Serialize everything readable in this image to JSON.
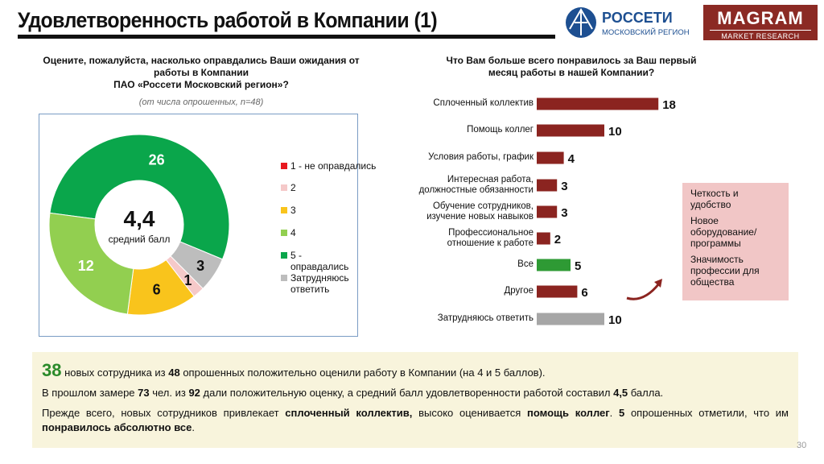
{
  "header": {
    "title": "Удовлетворенность работой в Компании (1)",
    "logo_rosseti": [
      "РОССЕТИ",
      "МОСКОВСКИЙ РЕГИОН"
    ],
    "logo_magram": [
      "MAGRAM",
      "MARKET RESEARCH"
    ]
  },
  "left": {
    "question_lines": [
      "Оцените, пожалуйста, насколько оправдались Ваши ожидания от",
      "работы в Компании",
      "ПАО «Россети Московский регион»?"
    ],
    "subtitle": "(от числа опрошенных, n=48)"
  },
  "right": {
    "question_lines": [
      "Что Вам больше всего понравилось за Ваш первый",
      "месяц работы в нашей Компании?"
    ]
  },
  "chart_data": [
    {
      "type": "pie",
      "center_value": "4,4",
      "center_label": "средний балл",
      "legend_position": "right",
      "slices": [
        {
          "label": "1 - не оправдались",
          "value": 0,
          "color": "#e8191f"
        },
        {
          "label": "2",
          "value": 1,
          "color": "#f5c9c9"
        },
        {
          "label": "3",
          "value": 6,
          "color": "#f9c41c"
        },
        {
          "label": "4",
          "value": 12,
          "color": "#92cf50"
        },
        {
          "label": "5 - оправдались",
          "value": 26,
          "color": "#0aa64b"
        },
        {
          "label": "Затрудняюсь ответить",
          "value": 3,
          "color": "#bdbdbd"
        }
      ]
    },
    {
      "type": "bar",
      "orientation": "horizontal",
      "categories": [
        "Сплоченный коллектив",
        "Помощь коллег",
        "Условия работы, график",
        "Интересная работа, должностные обязанности",
        "Обучение сотрудников, изучение новых навыков",
        "Профессиональное отношение к работе",
        "Все",
        "Другое",
        "Затрудняюсь ответить"
      ],
      "values": [
        18,
        10,
        4,
        3,
        3,
        2,
        5,
        6,
        10
      ],
      "colors": [
        "#8b2420",
        "#8b2420",
        "#8b2420",
        "#8b2420",
        "#8b2420",
        "#8b2420",
        "#2e9a34",
        "#8b2420",
        "#a6a6a6"
      ]
    }
  ],
  "note": [
    "Четкость и удобство",
    "Новое оборудование/ программы",
    "Значимость профессии для общества"
  ],
  "summary": {
    "p1": {
      "n1": "38",
      "t1": " новых сотрудника из ",
      "n2": "48",
      "t2": " опрошенных положительно оценили работу в Компании (на 4 и 5 баллов)."
    },
    "p2": {
      "t1": "В прошлом замере ",
      "n1": "73",
      "t2": " чел. из ",
      "n2": "92",
      "t3": " дали положительную оценку, а средний балл удовлетворенности работой составил ",
      "n3": "4,5",
      "t4": " балла."
    },
    "p3": {
      "t1": "Прежде всего, новых сотрудников привлекает ",
      "b1": "сплоченный коллектив,",
      "t2": " высоко оценивается ",
      "b2": "помощь коллег",
      "t3": ". ",
      "b3": "5",
      "t4": " опрошенных отметили, что им ",
      "b4": "понравилось абсолютно все",
      "t5": "."
    }
  },
  "page_number": "30"
}
